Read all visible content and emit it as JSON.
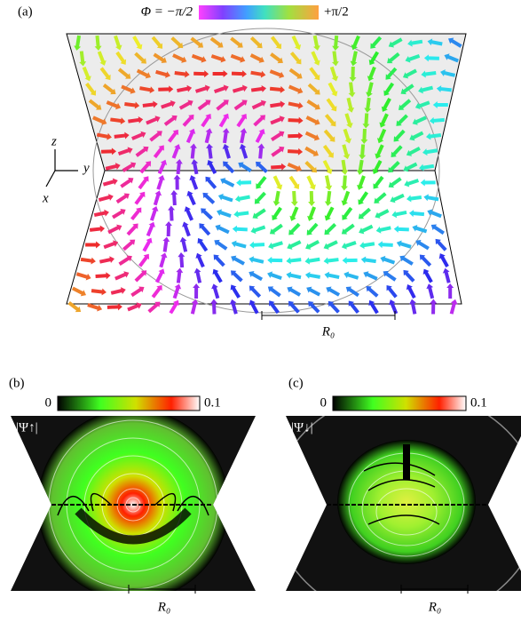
{
  "panel_a": {
    "label": "(a)",
    "colorbar_left": "Φ = −π/2",
    "colorbar_right": "+π/2",
    "axis_z": "z",
    "axis_y": "y",
    "axis_x": "x",
    "scale": "R₀"
  },
  "panel_b": {
    "label": "(b)",
    "colorbar_min": "0",
    "colorbar_max": "0.1",
    "quantity": "|Ψ↑|",
    "scale": "R₀"
  },
  "panel_c": {
    "label": "(c)",
    "colorbar_min": "0",
    "colorbar_max": "0.1",
    "quantity": "|Ψ↓|",
    "scale": "R₀"
  }
}
